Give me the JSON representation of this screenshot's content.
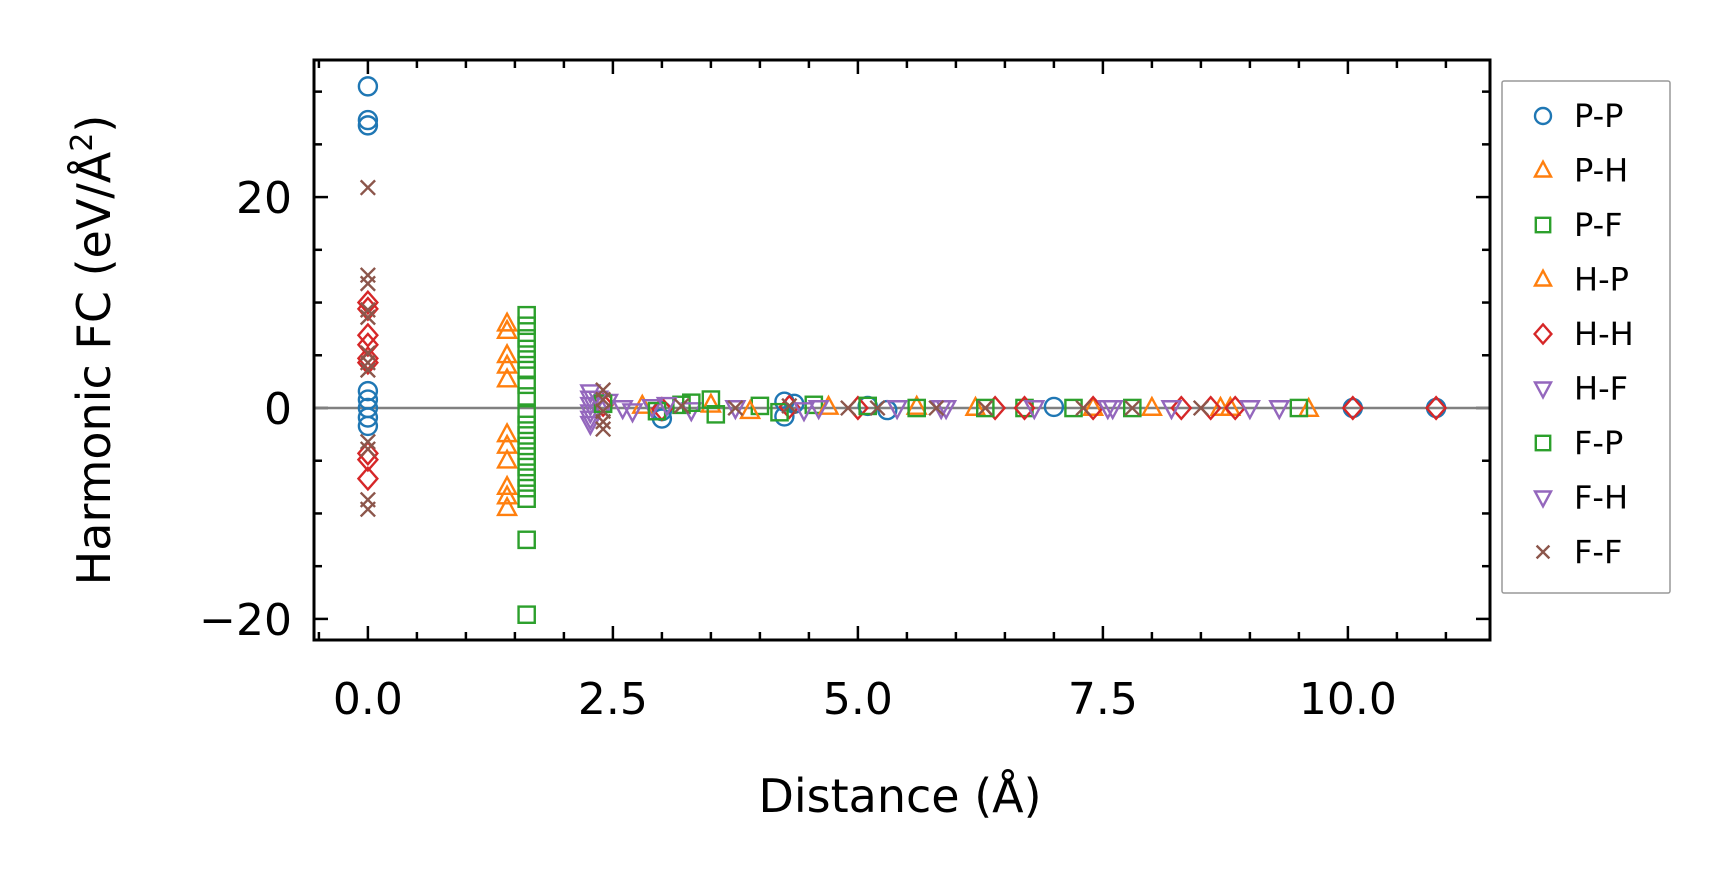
{
  "chart_data": {
    "type": "scatter",
    "title": "",
    "xlabel": "Distance (Å)",
    "ylabel_main": "Harmonic FC (eV/Å",
    "ylabel_sup": "2",
    "ylabel_close": ")",
    "xlim": [
      -0.55,
      11.45
    ],
    "ylim": [
      -22.0,
      33.0
    ],
    "xticks": [
      0.0,
      2.5,
      5.0,
      7.5,
      10.0
    ],
    "xtick_labels": [
      "0.0",
      "2.5",
      "5.0",
      "7.5",
      "10.0"
    ],
    "yticks": [
      -20,
      0,
      20
    ],
    "ytick_labels": [
      "−20",
      "0",
      "20"
    ],
    "x_minor_step": 0.5,
    "y_minor_step": 5,
    "zero_line": 0,
    "legend_position": "outside-right",
    "series": [
      {
        "name": "P-P",
        "marker": "circle",
        "color": "#1f77b4",
        "points": [
          [
            0,
            30.5
          ],
          [
            0,
            27.3
          ],
          [
            0,
            26.8
          ],
          [
            0,
            1.6
          ],
          [
            0,
            0.8
          ],
          [
            0,
            0.0
          ],
          [
            0,
            -0.9
          ],
          [
            0,
            -1.7
          ],
          [
            3.0,
            -1.0
          ],
          [
            3.0,
            -0.3
          ],
          [
            4.25,
            0.6
          ],
          [
            4.25,
            -0.8
          ],
          [
            4.35,
            0.4
          ],
          [
            5.1,
            0.2
          ],
          [
            5.3,
            -0.2
          ],
          [
            7.0,
            0.1
          ],
          [
            10.05,
            0.0
          ],
          [
            10.9,
            0.0
          ]
        ]
      },
      {
        "name": "P-H",
        "marker": "triangle-up",
        "color": "#ff7f0e",
        "points": [
          [
            1.42,
            8.0
          ],
          [
            1.42,
            7.3
          ],
          [
            1.42,
            5.0
          ],
          [
            1.42,
            4.0
          ],
          [
            1.42,
            2.7
          ],
          [
            1.42,
            -2.5
          ],
          [
            1.42,
            -3.6
          ],
          [
            1.42,
            -5.0
          ],
          [
            1.42,
            -7.5
          ],
          [
            1.42,
            -8.4
          ],
          [
            1.42,
            -9.5
          ],
          [
            3.5,
            0.3
          ],
          [
            5.6,
            0.1
          ],
          [
            7.4,
            0.0
          ],
          [
            8.0,
            0.0
          ],
          [
            8.8,
            0.0
          ],
          [
            9.6,
            -0.1
          ]
        ]
      },
      {
        "name": "P-F",
        "marker": "square",
        "color": "#2ca02c",
        "points": [
          [
            1.62,
            8.8
          ],
          [
            1.62,
            7.8
          ],
          [
            1.62,
            6.6
          ],
          [
            1.62,
            5.6
          ],
          [
            1.62,
            4.6
          ],
          [
            1.62,
            3.6
          ],
          [
            1.62,
            2.2
          ],
          [
            1.62,
            1.1
          ],
          [
            1.62,
            -0.6
          ],
          [
            1.62,
            -1.6
          ],
          [
            1.62,
            -2.6
          ],
          [
            1.62,
            -3.6
          ],
          [
            1.62,
            -4.6
          ],
          [
            1.62,
            -5.6
          ],
          [
            1.62,
            -6.6
          ],
          [
            1.62,
            -7.6
          ],
          [
            1.62,
            -8.6
          ],
          [
            1.62,
            -12.5
          ],
          [
            1.62,
            -19.6
          ],
          [
            3.2,
            0.3
          ],
          [
            3.5,
            0.8
          ],
          [
            3.55,
            -0.6
          ],
          [
            4.0,
            0.2
          ],
          [
            4.55,
            0.3
          ],
          [
            5.6,
            0.0
          ],
          [
            6.7,
            0.0
          ],
          [
            7.8,
            0.0
          ],
          [
            9.5,
            0.0
          ]
        ]
      },
      {
        "name": "H-P",
        "marker": "triangle-up",
        "color": "#ff7f0e",
        "points": [
          [
            2.8,
            0.2
          ],
          [
            3.9,
            -0.3
          ],
          [
            4.7,
            0.1
          ],
          [
            6.2,
            0.0
          ],
          [
            8.7,
            0.0
          ]
        ]
      },
      {
        "name": "H-H",
        "marker": "diamond",
        "color": "#d62728",
        "points": [
          [
            0,
            10.0
          ],
          [
            0,
            9.4
          ],
          [
            0,
            6.9
          ],
          [
            0,
            6.0
          ],
          [
            0,
            4.7
          ],
          [
            0,
            4.3
          ],
          [
            0,
            -4.3
          ],
          [
            0,
            -4.9
          ],
          [
            0,
            -6.7
          ],
          [
            2.4,
            0.3
          ],
          [
            3.0,
            -0.1
          ],
          [
            4.3,
            0.1
          ],
          [
            5.0,
            0.0
          ],
          [
            6.4,
            0.0
          ],
          [
            6.7,
            0.0
          ],
          [
            7.4,
            0.0
          ],
          [
            8.3,
            0.0
          ],
          [
            8.6,
            0.0
          ],
          [
            8.85,
            0.0
          ],
          [
            10.05,
            0.0
          ],
          [
            10.9,
            0.0
          ]
        ]
      },
      {
        "name": "H-F",
        "marker": "triangle-down",
        "color": "#9467bd",
        "points": [
          [
            2.27,
            1.5
          ],
          [
            2.27,
            0.9
          ],
          [
            2.27,
            0.3
          ],
          [
            2.27,
            -0.4
          ],
          [
            2.27,
            -1.0
          ],
          [
            2.27,
            -1.5
          ],
          [
            2.45,
            0.6
          ],
          [
            2.6,
            0.0
          ],
          [
            2.7,
            -0.3
          ],
          [
            2.9,
            0.1
          ],
          [
            3.3,
            -0.2
          ],
          [
            3.75,
            0.0
          ],
          [
            4.6,
            0.0
          ],
          [
            5.4,
            0.0
          ],
          [
            5.9,
            0.0
          ],
          [
            6.8,
            0.0
          ],
          [
            7.6,
            0.0
          ],
          [
            8.2,
            0.0
          ],
          [
            9.0,
            0.0
          ],
          [
            9.3,
            0.0
          ]
        ]
      },
      {
        "name": "F-P",
        "marker": "square",
        "color": "#2ca02c",
        "points": [
          [
            2.4,
            0.4
          ],
          [
            2.95,
            -0.3
          ],
          [
            3.3,
            0.5
          ],
          [
            4.2,
            -0.4
          ],
          [
            5.1,
            0.2
          ],
          [
            6.3,
            0.0
          ],
          [
            7.2,
            0.0
          ]
        ]
      },
      {
        "name": "F-H",
        "marker": "triangle-down",
        "color": "#9467bd",
        "points": [
          [
            2.35,
            0.9
          ],
          [
            3.05,
            0.3
          ],
          [
            4.45,
            -0.2
          ],
          [
            5.85,
            0.0
          ],
          [
            7.55,
            0.0
          ]
        ]
      },
      {
        "name": "F-F",
        "marker": "x",
        "color": "#8c564b",
        "points": [
          [
            0,
            20.9
          ],
          [
            0,
            12.6
          ],
          [
            0,
            11.8
          ],
          [
            0,
            9.3
          ],
          [
            0,
            8.6
          ],
          [
            0,
            5.2
          ],
          [
            0,
            4.3
          ],
          [
            0,
            3.6
          ],
          [
            0,
            -3.2
          ],
          [
            0,
            -3.9
          ],
          [
            0,
            -8.7
          ],
          [
            0,
            -9.6
          ],
          [
            2.4,
            1.7
          ],
          [
            2.4,
            0.8
          ],
          [
            2.4,
            -0.3
          ],
          [
            2.4,
            -1.3
          ],
          [
            2.4,
            -2.0
          ],
          [
            3.2,
            0.2
          ],
          [
            3.75,
            0.0
          ],
          [
            4.3,
            0.2
          ],
          [
            4.9,
            0.0
          ],
          [
            5.2,
            0.0
          ],
          [
            5.8,
            0.0
          ],
          [
            6.3,
            0.0
          ],
          [
            7.3,
            0.0
          ],
          [
            7.8,
            0.0
          ],
          [
            8.5,
            0.0
          ]
        ]
      }
    ]
  }
}
